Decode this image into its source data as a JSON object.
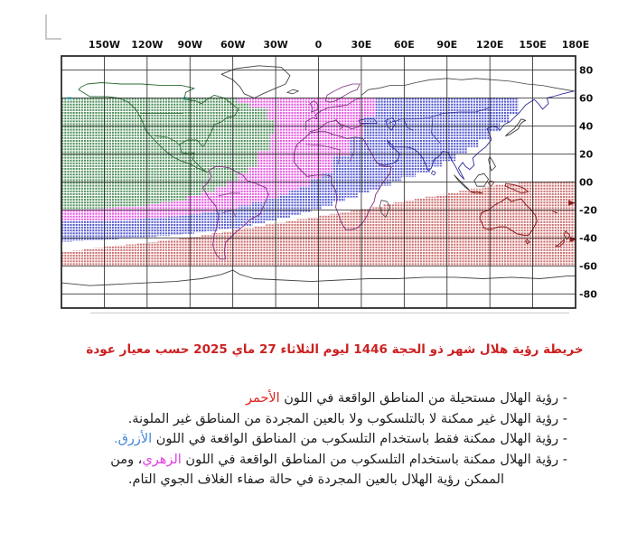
{
  "title": {
    "text": "خريطة رؤية هلال شهر ذو الحجة 1446 ليوم الثلاثاء 27 ماي 2025 حسب معيار عودة",
    "color": "#cc2222"
  },
  "map": {
    "lon_ticks": [
      {
        "label": "150W",
        "lon": -150
      },
      {
        "label": "120W",
        "lon": -120
      },
      {
        "label": "90W",
        "lon": -90
      },
      {
        "label": "60W",
        "lon": -60
      },
      {
        "label": "30W",
        "lon": -30
      },
      {
        "label": "0",
        "lon": 0
      },
      {
        "label": "30E",
        "lon": 30
      },
      {
        "label": "60E",
        "lon": 60
      },
      {
        "label": "90E",
        "lon": 90
      },
      {
        "label": "120E",
        "lon": 120
      },
      {
        "label": "150E",
        "lon": 150
      },
      {
        "label": "180E",
        "lon": 180
      }
    ],
    "lat_ticks": [
      {
        "label": "80",
        "lat": 80
      },
      {
        "label": "60",
        "lat": 60
      },
      {
        "label": "40",
        "lat": 40
      },
      {
        "label": "20",
        "lat": 20
      },
      {
        "label": "00",
        "lat": 0
      },
      {
        "label": "-20",
        "lat": -20
      },
      {
        "label": "-40",
        "lat": -40
      },
      {
        "label": "-60",
        "lat": -60
      },
      {
        "label": "-80",
        "lat": -80
      }
    ],
    "zone_colors": {
      "blue": "#5057cd",
      "pink": "#e455e0",
      "green": "#4e8f5a",
      "red": "#cc6e6e"
    },
    "zones": [
      {
        "name": "zone-blue-telescope-only",
        "color": "blue",
        "boundary": [
          [
            -180,
            60
          ],
          [
            151,
            60
          ],
          [
            140,
            48
          ],
          [
            127,
            36
          ],
          [
            112,
            25
          ],
          [
            96,
            15
          ],
          [
            78,
            7
          ],
          [
            58,
            0
          ],
          [
            36,
            -8
          ],
          [
            10,
            -17
          ],
          [
            -20,
            -26
          ],
          [
            -55,
            -33
          ],
          [
            -95,
            -38
          ],
          [
            -140,
            -41
          ],
          [
            -180,
            -43
          ]
        ]
      },
      {
        "name": "zone-pink-telescope-maybe-naked-eye",
        "color": "pink",
        "boundary": [
          [
            -180,
            60
          ],
          [
            48,
            60
          ],
          [
            40,
            47
          ],
          [
            32,
            33
          ],
          [
            22,
            19
          ],
          [
            10,
            7
          ],
          [
            -6,
            -3
          ],
          [
            -28,
            -12
          ],
          [
            -56,
            -19
          ],
          [
            -90,
            -24
          ],
          [
            -130,
            -27
          ],
          [
            -180,
            -28
          ]
        ]
      },
      {
        "name": "zone-green-naked-eye",
        "color": "green",
        "boundary": [
          [
            -180,
            60
          ],
          [
            -65,
            60
          ],
          [
            -48,
            53
          ],
          [
            -36,
            44
          ],
          [
            -31,
            34
          ],
          [
            -34,
            22
          ],
          [
            -43,
            11
          ],
          [
            -56,
            1
          ],
          [
            -72,
            -7
          ],
          [
            -92,
            -13
          ],
          [
            -120,
            -17
          ],
          [
            -150,
            -19
          ],
          [
            -180,
            -20
          ]
        ]
      },
      {
        "name": "zone-red-impossible",
        "color": "red",
        "band": true,
        "boundary": [
          [
            -180,
            -50
          ],
          [
            -150,
            -46
          ],
          [
            -120,
            -43
          ],
          [
            -90,
            -39
          ],
          [
            -60,
            -34
          ],
          [
            -30,
            -29
          ],
          [
            0,
            -24
          ],
          [
            30,
            -19
          ],
          [
            60,
            -13
          ],
          [
            90,
            -8
          ],
          [
            115,
            -3
          ],
          [
            140,
            0
          ],
          [
            180,
            1
          ]
        ],
        "bottom_lat": -60
      }
    ]
  },
  "legend": {
    "lines": [
      {
        "segments": [
          {
            "text": "- رؤية الهلال مستحيلة من المناطق الواقعة في اللون "
          },
          {
            "text": "الأحمر",
            "color": "#e02222"
          }
        ]
      },
      {
        "segments": [
          {
            "text": "- رؤية الهلال غير ممكنة لا بالتلسكوب ولا بالعين المجردة من المناطق غير الملونة."
          }
        ]
      },
      {
        "segments": [
          {
            "text": "- رؤية الهلال ممكنة فقط باستخدام التلسكوب من المناطق الواقعة في اللون "
          },
          {
            "text": "الأزرق.",
            "color": "#4285d6"
          }
        ]
      },
      {
        "segments": [
          {
            "text": "- رؤية الهلال ممكنة باستخدام التلسكوب من المناطق الواقعة في اللون "
          },
          {
            "text": "الزهري",
            "color": "#e33fe3"
          },
          {
            "text": "، ومن"
          }
        ]
      },
      {
        "indent": true,
        "segments": [
          {
            "text": "الممكن رؤية الهلال بالعين المجردة في حالة صفاء الغلاف الجوي التام."
          }
        ]
      }
    ]
  }
}
